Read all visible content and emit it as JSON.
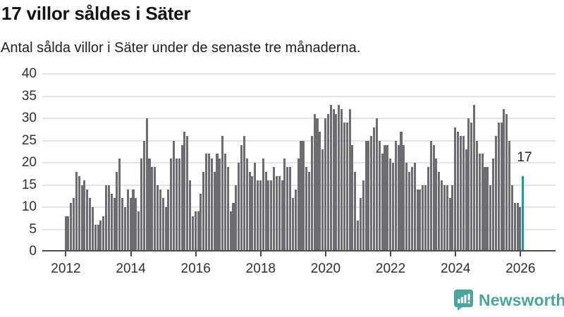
{
  "header": {
    "title": "17 villor såldes i Säter",
    "subtitle": "Antal sålda villor i Säter under de senaste tre månaderna."
  },
  "chart_data": {
    "type": "bar",
    "title": "17 villor såldes i Säter",
    "subtitle": "Antal sålda villor i Säter under de senaste tre månaderna.",
    "x_unit": "month",
    "x_start": "2012-01",
    "x_end": "2026-02",
    "x_tick_labels": [
      "2012",
      "2014",
      "2016",
      "2018",
      "2020",
      "2022",
      "2024",
      "2026"
    ],
    "y_ticks": [
      0,
      5,
      10,
      15,
      20,
      25,
      30,
      35,
      40
    ],
    "ylim": [
      0,
      40
    ],
    "grid": true,
    "legend": false,
    "bar_color": "#6d6d71",
    "series": [
      {
        "name": "Antal sålda villor",
        "values": [
          8,
          8,
          11,
          12,
          18,
          17,
          15,
          16,
          14,
          12,
          10,
          6,
          6,
          7,
          8,
          15,
          15,
          13,
          12,
          18,
          21,
          12,
          10,
          14,
          12,
          14,
          12,
          9,
          21,
          25,
          30,
          21,
          19,
          19,
          15,
          14,
          12,
          10,
          14,
          21,
          25,
          21,
          21,
          24,
          27,
          26,
          16,
          8,
          9,
          9,
          13,
          18,
          22,
          22,
          21,
          18,
          22,
          21,
          26,
          22,
          19,
          9,
          11,
          15,
          20,
          24,
          26,
          21,
          18,
          17,
          20,
          16,
          16,
          21,
          18,
          16,
          16,
          19,
          17,
          17,
          16,
          21,
          19,
          19,
          12,
          14,
          21,
          25,
          25,
          19,
          18,
          26,
          31,
          30,
          27,
          23,
          30,
          31,
          33,
          32,
          31,
          33,
          32,
          29,
          29,
          32,
          24,
          18,
          7,
          12,
          16,
          25,
          25,
          26,
          28,
          30,
          25,
          22,
          24,
          24,
          21,
          20,
          25,
          24,
          27,
          24,
          20,
          18,
          19,
          20,
          14,
          14,
          15,
          15,
          19,
          25,
          24,
          21,
          18,
          16,
          15,
          15,
          12,
          15,
          28,
          27,
          26,
          26,
          23,
          30,
          29,
          33,
          25,
          22,
          22,
          19,
          19,
          15,
          21,
          26,
          29,
          29,
          32,
          31,
          25,
          15,
          11,
          11,
          10,
          17
        ]
      }
    ],
    "highlight": {
      "index": 169,
      "month": "2026-02",
      "value": 17,
      "label": "17",
      "color": "#199da3"
    }
  },
  "footer": {
    "brand": "Newsworthy",
    "brand_color": "#4ba49d",
    "logo_icon": "newsworthy-speech-bubble-chart-icon"
  }
}
